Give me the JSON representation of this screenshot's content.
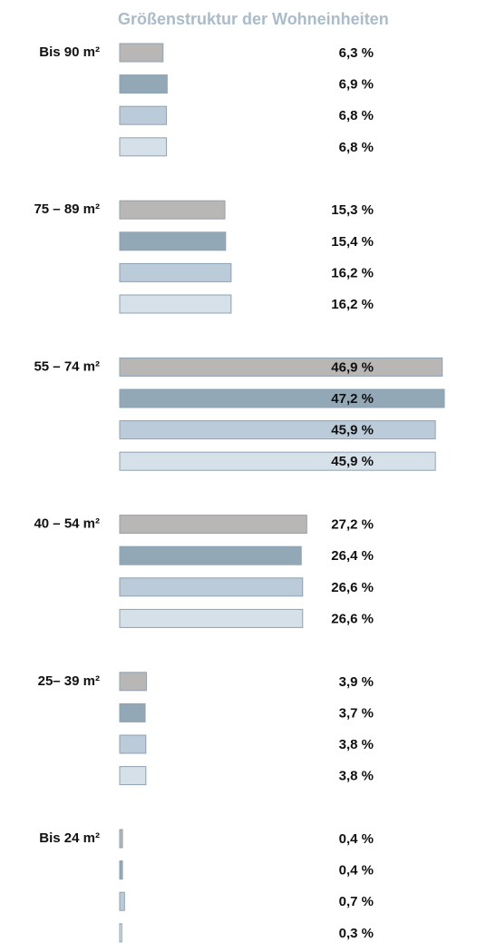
{
  "chart_data": {
    "type": "hbar",
    "title": "Größenstruktur der Wohneinheiten",
    "categories": [
      "Bis 90 m²",
      "75 – 89 m²",
      "55 – 74 m²",
      "40 – 54 m²",
      "25– 39 m²",
      "Bis 24 m²"
    ],
    "series": [
      {
        "color": "#b9b6b6",
        "values": [
          6.3,
          15.3,
          46.9,
          27.2,
          3.9,
          0.4
        ],
        "value_labels": [
          "6,3 %",
          "15,3 %",
          "46,9 %",
          "27,2 %",
          "3,9 %",
          "0,4 %"
        ]
      },
      {
        "color": "#93a8b7",
        "values": [
          6.9,
          15.4,
          47.2,
          26.4,
          3.7,
          0.4
        ],
        "value_labels": [
          "6,9 %",
          "15,4 %",
          "47,2 %",
          "26,4 %",
          "3,7 %",
          "0,4 %"
        ]
      },
      {
        "color": "#bccbd9",
        "values": [
          6.8,
          16.2,
          45.9,
          26.6,
          3.8,
          0.7
        ],
        "value_labels": [
          "6,8 %",
          "16,2 %",
          "45,9 %",
          "26,6 %",
          "3,8 %",
          "0,7 %"
        ]
      },
      {
        "color": "#d6e0e8",
        "values": [
          6.8,
          16.2,
          45.9,
          26.6,
          3.8,
          0.3
        ],
        "value_labels": [
          "6,8 %",
          "16,2 %",
          "45,9 %",
          "26,6 %",
          "3,8 %",
          "0,3 %"
        ]
      }
    ]
  }
}
